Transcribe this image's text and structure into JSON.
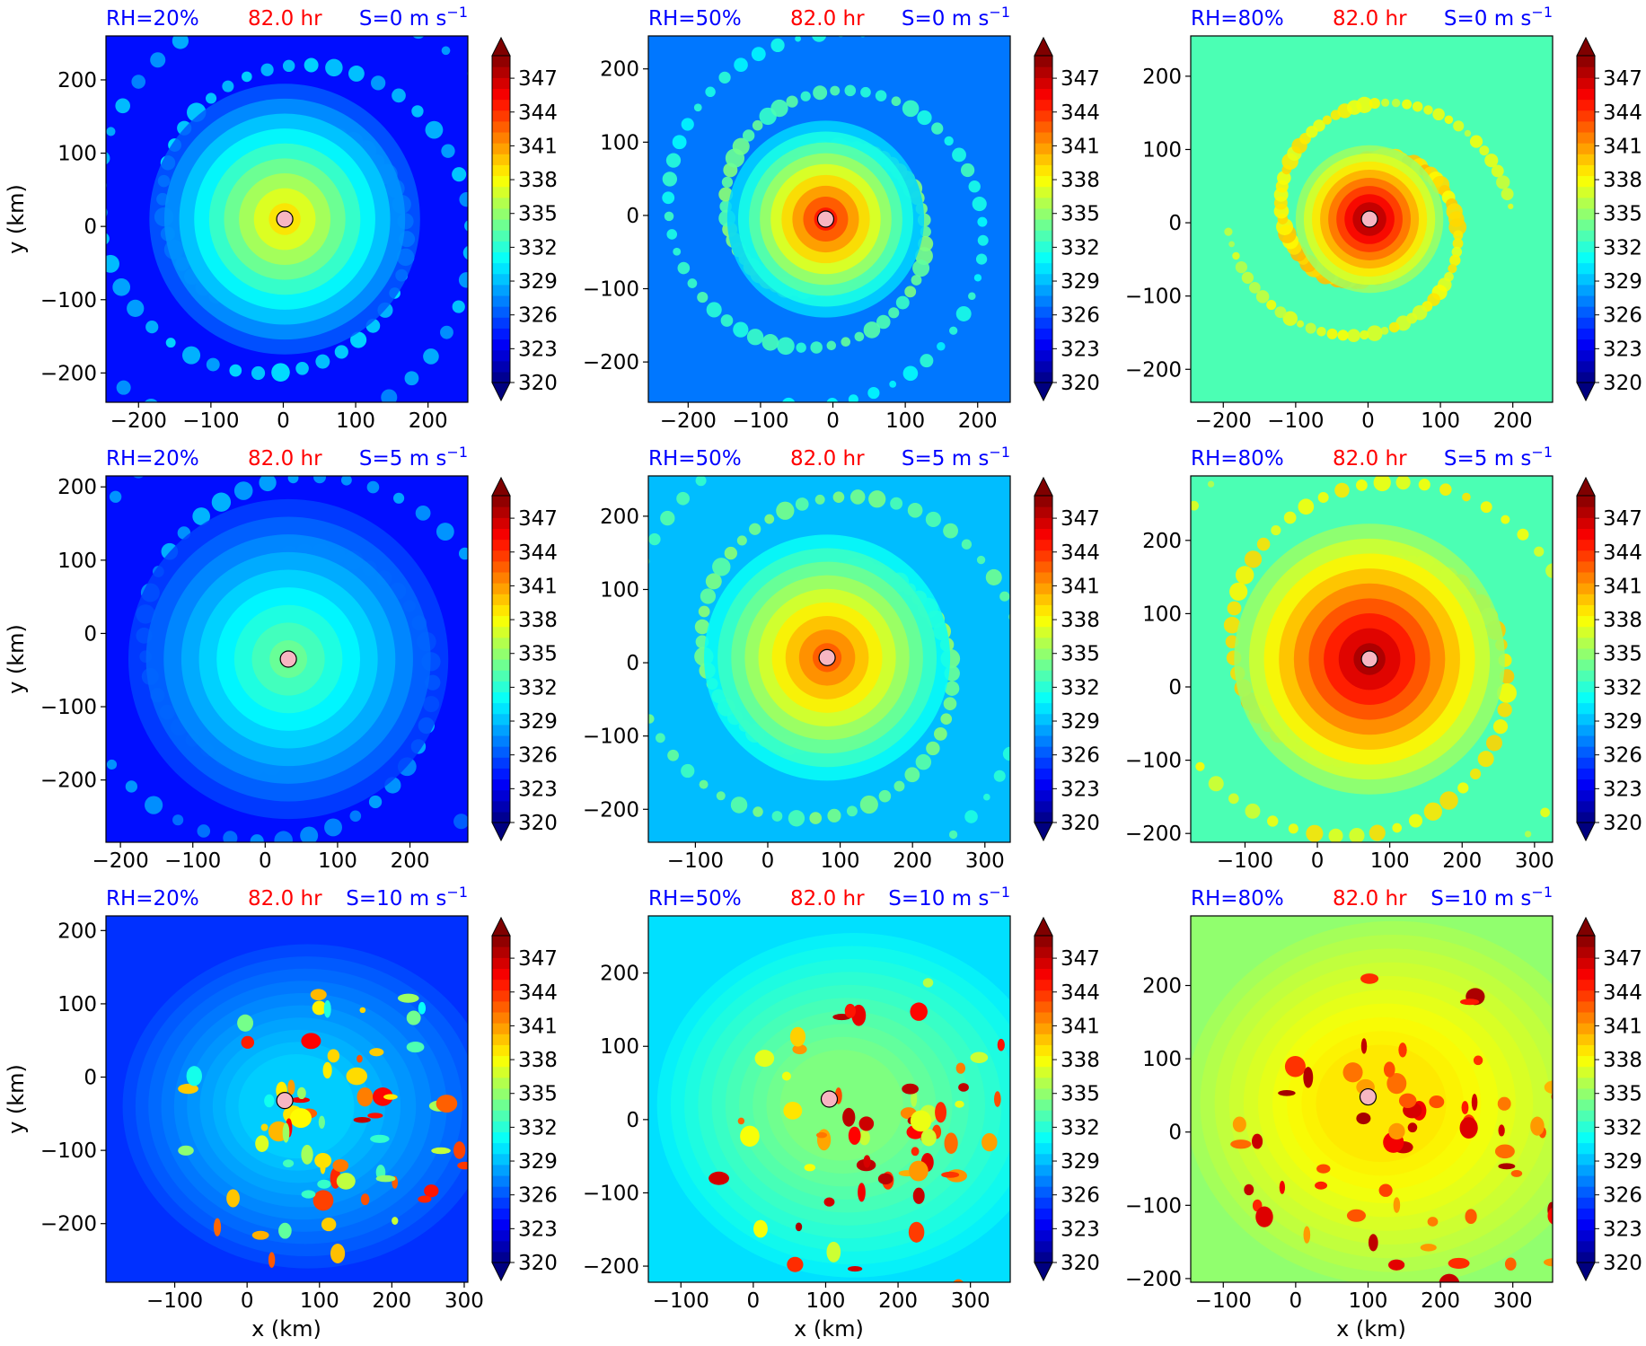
{
  "chart_data": {
    "type": "heatmap",
    "common": {
      "time_label": "82.0 hr",
      "xlabel": "x (km)",
      "ylabel": "y (km)",
      "colorbar_ticks": [
        347,
        344,
        341,
        338,
        335,
        332,
        329,
        326,
        323,
        320
      ],
      "colorbar_range": [
        320,
        349
      ],
      "colormap": "jet",
      "colors": {
        "rh_text": "#0000ff",
        "time_text": "#ff0000",
        "marker_fill": "#f7b6c2"
      }
    },
    "panels": [
      {
        "rh": "RH=20%",
        "shear": "S=0 m s",
        "sup": "−1",
        "xlim": [
          -245,
          255
        ],
        "ylim": [
          -240,
          260
        ],
        "xticks": [
          "−200",
          "−100",
          "0",
          "100",
          "200"
        ],
        "yticks": [
          "200",
          "100",
          "0",
          "−100",
          "−200"
        ],
        "xticks_v": [
          -200,
          -100,
          0,
          100,
          200
        ],
        "yticks_v": [
          200,
          100,
          0,
          -100,
          -200
        ],
        "center": [
          2,
          10
        ],
        "env_level": 324,
        "core_level": 339,
        "rmw": 110,
        "spiral": "strong"
      },
      {
        "rh": "RH=50%",
        "shear": "S=0 m s",
        "sup": "−1",
        "xlim": [
          -255,
          245
        ],
        "ylim": [
          -255,
          245
        ],
        "xticks": [
          "−200",
          "−100",
          "0",
          "100",
          "200"
        ],
        "yticks": [
          "200",
          "100",
          "0",
          "−100",
          "−200"
        ],
        "xticks_v": [
          -200,
          -100,
          0,
          100,
          200
        ],
        "yticks_v": [
          200,
          100,
          0,
          -100,
          -200
        ],
        "center": [
          -10,
          -5
        ],
        "env_level": 327,
        "core_level": 345,
        "rmw": 80,
        "spiral": "medium"
      },
      {
        "rh": "RH=80%",
        "shear": "S=0 m s",
        "sup": "−1",
        "xlim": [
          -245,
          255
        ],
        "ylim": [
          -245,
          255
        ],
        "xticks": [
          "−200",
          "−100",
          "0",
          "100",
          "200"
        ],
        "yticks": [
          "200",
          "100",
          "0",
          "−100",
          "−200"
        ],
        "xticks_v": [
          -200,
          -100,
          0,
          100,
          200
        ],
        "yticks_v": [
          200,
          100,
          0,
          -100,
          -200
        ],
        "center": [
          2,
          5
        ],
        "env_level": 333,
        "core_level": 349,
        "rmw": 60,
        "spiral": "weak"
      },
      {
        "rh": "RH=20%",
        "shear": "S=5 m s",
        "sup": "−1",
        "xlim": [
          -220,
          280
        ],
        "ylim": [
          -285,
          215
        ],
        "xticks": [
          "−200",
          "−100",
          "0",
          "100",
          "200"
        ],
        "yticks": [
          "200",
          "100",
          "0",
          "−100",
          "−200"
        ],
        "xticks_v": [
          -200,
          -100,
          0,
          100,
          200
        ],
        "yticks_v": [
          200,
          100,
          0,
          -100,
          -200
        ],
        "center": [
          32,
          -35
        ],
        "env_level": 324,
        "core_level": 334,
        "rmw": 130,
        "spiral": "strong"
      },
      {
        "rh": "RH=50%",
        "shear": "S=5 m s",
        "sup": "−1",
        "xlim": [
          -165,
          335
        ],
        "ylim": [
          -245,
          255
        ],
        "xticks": [
          "−100",
          "0",
          "100",
          "200",
          "300"
        ],
        "yticks": [
          "200",
          "100",
          "0",
          "−100",
          "−200"
        ],
        "xticks_v": [
          -100,
          0,
          100,
          200,
          300
        ],
        "yticks_v": [
          200,
          100,
          0,
          -100,
          -200
        ],
        "center": [
          82,
          7
        ],
        "env_level": 329,
        "core_level": 343,
        "rmw": 100,
        "spiral": "medium"
      },
      {
        "rh": "RH=80%",
        "shear": "S=5 m s",
        "sup": "−1",
        "xlim": [
          -175,
          325
        ],
        "ylim": [
          -212,
          288
        ],
        "xticks": [
          "−100",
          "0",
          "100",
          "200",
          "300"
        ],
        "yticks": [
          "200",
          "100",
          "0",
          "−100",
          "−200"
        ],
        "xticks_v": [
          -100,
          0,
          100,
          200,
          300
        ],
        "yticks_v": [
          200,
          100,
          0,
          -100,
          -200
        ],
        "center": [
          72,
          38
        ],
        "env_level": 333,
        "core_level": 348,
        "rmw": 110,
        "spiral": "medium"
      },
      {
        "rh": "RH=20%",
        "shear": "S=10 m s",
        "sup": "−1",
        "xlim": [
          -195,
          305
        ],
        "ylim": [
          -280,
          220
        ],
        "xticks": [
          "−100",
          "0",
          "100",
          "200",
          "300"
        ],
        "yticks": [
          "200",
          "100",
          "0",
          "−100",
          "−200"
        ],
        "xticks_v": [
          -100,
          0,
          100,
          200,
          300
        ],
        "yticks_v": [
          200,
          100,
          0,
          -100,
          -200
        ],
        "center": [
          52,
          -32
        ],
        "env_level": 325,
        "core_level": 331,
        "rmw": 160,
        "spiral": "sheared"
      },
      {
        "rh": "RH=50%",
        "shear": "S=10 m s",
        "sup": "−1",
        "xlim": [
          -145,
          355
        ],
        "ylim": [
          -222,
          278
        ],
        "xticks": [
          "−100",
          "0",
          "100",
          "200",
          "300"
        ],
        "yticks": [
          "200",
          "100",
          "0",
          "−100",
          "−200"
        ],
        "xticks_v": [
          -100,
          0,
          100,
          200,
          300
        ],
        "yticks_v": [
          200,
          100,
          0,
          -100,
          -200
        ],
        "center": [
          105,
          28
        ],
        "env_level": 330,
        "core_level": 336,
        "rmw": 170,
        "spiral": "sheared"
      },
      {
        "rh": "RH=80%",
        "shear": "S=10 m s",
        "sup": "−1",
        "xlim": [
          -145,
          355
        ],
        "ylim": [
          -205,
          295
        ],
        "xticks": [
          "−100",
          "0",
          "100",
          "200",
          "300"
        ],
        "yticks": [
          "200",
          "100",
          "0",
          "−100",
          "−200"
        ],
        "xticks_v": [
          -100,
          0,
          100,
          200,
          300
        ],
        "yticks_v": [
          200,
          100,
          0,
          -100,
          -200
        ],
        "center": [
          100,
          48
        ],
        "env_level": 335,
        "core_level": 340,
        "rmw": 180,
        "spiral": "sheared"
      }
    ]
  }
}
